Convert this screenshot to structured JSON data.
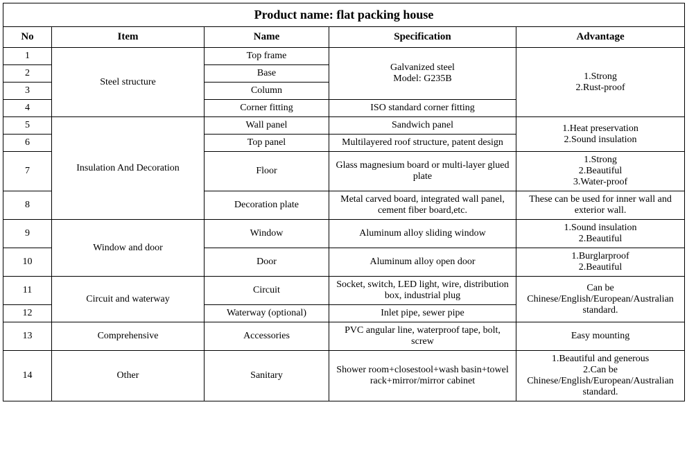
{
  "title": "Product name: flat packing house",
  "headers": {
    "no": "No",
    "item": "Item",
    "name": "Name",
    "spec": "Specification",
    "adv": "Advantage"
  },
  "no": {
    "r1": "1",
    "r2": "2",
    "r3": "3",
    "r4": "4",
    "r5": "5",
    "r6": "6",
    "r7": "7",
    "r8": "8",
    "r9": "9",
    "r10": "10",
    "r11": "11",
    "r12": "12",
    "r13": "13",
    "r14": "14"
  },
  "item": {
    "steel": "Steel structure",
    "insulation": "Insulation And Decoration",
    "windowdoor": "Window and door",
    "circuit": "Circuit and waterway",
    "comprehensive": "Comprehensive",
    "other": "Other"
  },
  "name": {
    "r1": "Top frame",
    "r2": "Base",
    "r3": "Column",
    "r4": "Corner fitting",
    "r5": "Wall panel",
    "r6": "Top panel",
    "r7": "Floor",
    "r8": "Decoration plate",
    "r9": "Window",
    "r10": "Door",
    "r11": "Circuit",
    "r12": "Waterway (optional)",
    "r13": "Accessories",
    "r14": "Sanitary"
  },
  "spec": {
    "galv": "Galvanized steel\nModel: G235B",
    "r4": "ISO standard corner fitting",
    "r5": "Sandwich panel",
    "r6": "Multilayered roof structure, patent design",
    "r7": "Glass magnesium board or multi-layer glued plate",
    "r8": "Metal carved board, integrated wall panel, cement fiber board,etc.",
    "r9": "Aluminum alloy sliding window",
    "r10": "Aluminum alloy open door",
    "r11": "Socket, switch, LED light, wire, distribution box, industrial plug",
    "r12": "Inlet pipe, sewer pipe",
    "r13": "PVC angular line, waterproof tape, bolt, screw",
    "r14": "Shower room+closestool+wash basin+towel rack+mirror/mirror cabinet"
  },
  "adv": {
    "steel": "1.Strong\n2.Rust-proof",
    "heat": "1.Heat preservation\n2.Sound insulation",
    "floor": "1.Strong\n2.Beautiful\n3.Water-proof",
    "deco": "These can be used for inner wall and exterior wall.",
    "window": "1.Sound insulation\n2.Beautiful",
    "door": "1.Burglarproof\n2.Beautiful",
    "circuit": "Can be Chinese/English/European/Australian standard.",
    "comp": "Easy mounting",
    "other": "1.Beautiful and generous\n2.Can be Chinese/English/European/Australian standard."
  }
}
